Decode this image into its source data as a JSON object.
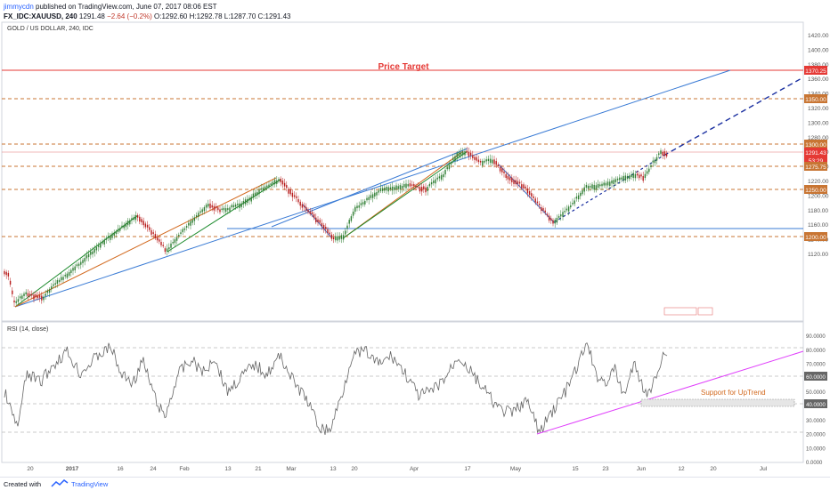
{
  "header": {
    "user": "jimmycdn",
    "published": "published on TradingView.com, June 07, 2017 08:06 EST",
    "symbol": "FX_IDC:XAUUSD, 240",
    "last": "1291.48",
    "change": "−2.64 (−0.2%)",
    "ohlc": "O:1292.60 H:1292.78 L:1287.70 C:1291.43"
  },
  "main_panel": {
    "title": "GOLD / US DOLLAR, 240, IDC"
  },
  "annotations": {
    "price_target": "Price Target",
    "support_uptrend": "Support for UpTrend"
  },
  "price_axis": {
    "ticks": [
      "1420.00",
      "1400.00",
      "1380.00",
      "1360.00",
      "1340.00",
      "1320.00",
      "1300.00",
      "1280.00",
      "1260.00",
      "1240.00",
      "1220.00",
      "1200.00",
      "1180.00",
      "1160.00",
      "1140.00",
      "1120.00"
    ]
  },
  "price_labels": {
    "target": "1370.25",
    "l1350": "1350.00",
    "l1300": "1300.00",
    "current": "1291.43",
    "countdown": "53:29",
    "l1275": "1275.75",
    "l1250": "1250.00",
    "l1200": "1200.00"
  },
  "indicator": {
    "title": "RSI (14, close)",
    "ticks": [
      "90.0000",
      "80.0000",
      "70.0000",
      "60.0000",
      "50.0000",
      "40.0000",
      "30.0000",
      "20.0000",
      "10.0000",
      "0.0000"
    ],
    "labels": {
      "l60": "60.0000",
      "l40": "40.0000"
    }
  },
  "time_axis": {
    "ticks": [
      "20",
      "2017",
      "16",
      "24",
      "Feb",
      "13",
      "21",
      "Mar",
      "13",
      "20",
      "Apr",
      "17",
      "May",
      "15",
      "23",
      "Jun",
      "12",
      "20",
      "Jul"
    ]
  },
  "footer": {
    "created": "Created with",
    "brand": "TradingView"
  },
  "colors": {
    "price_target": "#e53935",
    "level_dashed": "#c87533",
    "trend_blue": "#3a7bd5",
    "trend_green": "#1b8a2b",
    "trend_orange": "#d2691e",
    "projection": "#1a2fa0",
    "support_line": "#e040fb",
    "up_candle": "#2e7d32",
    "down_candle": "#b71c1c"
  }
}
